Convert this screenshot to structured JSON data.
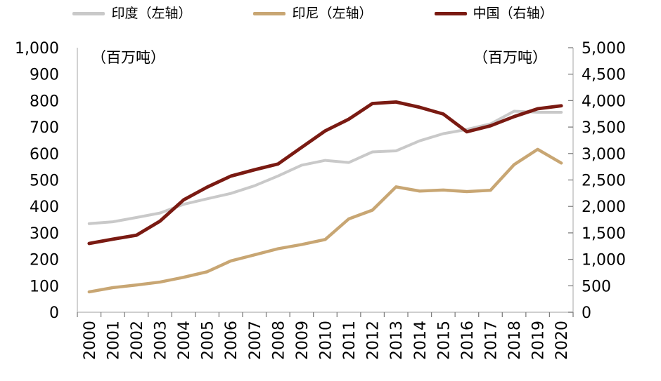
{
  "chart_data": {
    "type": "line",
    "title": "",
    "unit_label_left": "（百万吨）",
    "unit_label_right": "（百万吨）",
    "legend_position": "top",
    "grid": false,
    "axis_line_color": "#bfbfbf",
    "tick_mark_color": "#7f7f7f",
    "categories": [
      "2000",
      "2001",
      "2002",
      "2003",
      "2004",
      "2005",
      "2006",
      "2007",
      "2008",
      "2009",
      "2010",
      "2011",
      "2012",
      "2013",
      "2014",
      "2015",
      "2016",
      "2017",
      "2018",
      "2019",
      "2020"
    ],
    "series": [
      {
        "name": "印度（左轴）",
        "axis": "left",
        "color": "#c9c9c9",
        "values": [
          335,
          342,
          358,
          375,
          408,
          429,
          449,
          478,
          515,
          556,
          574,
          566,
          606,
          610,
          648,
          675,
          691,
          712,
          760,
          756,
          756
        ]
      },
      {
        "name": "印尼（左轴）",
        "axis": "left",
        "color": "#c8a673",
        "values": [
          77,
          93,
          103,
          114,
          132,
          153,
          194,
          217,
          240,
          256,
          275,
          353,
          386,
          474,
          458,
          462,
          456,
          461,
          558,
          616,
          564
        ]
      },
      {
        "name": "中国（右轴）",
        "axis": "right",
        "color": "#7a1a12",
        "values": [
          1300,
          1381,
          1455,
          1722,
          2123,
          2365,
          2573,
          2692,
          2802,
          3115,
          3428,
          3650,
          3945,
          3974,
          3874,
          3747,
          3411,
          3524,
          3698,
          3846,
          3902
        ]
      }
    ],
    "left_axis": {
      "min": 0,
      "max": 1000,
      "step": 100,
      "tick_labels": [
        "0",
        "100",
        "200",
        "300",
        "400",
        "500",
        "600",
        "700",
        "800",
        "900",
        "1,000"
      ]
    },
    "right_axis": {
      "min": 0,
      "max": 5000,
      "step": 500,
      "tick_labels": [
        "0",
        "500",
        "1,000",
        "1,500",
        "2,000",
        "2,500",
        "3,000",
        "3,500",
        "4,000",
        "4,500",
        "5,000"
      ]
    }
  }
}
